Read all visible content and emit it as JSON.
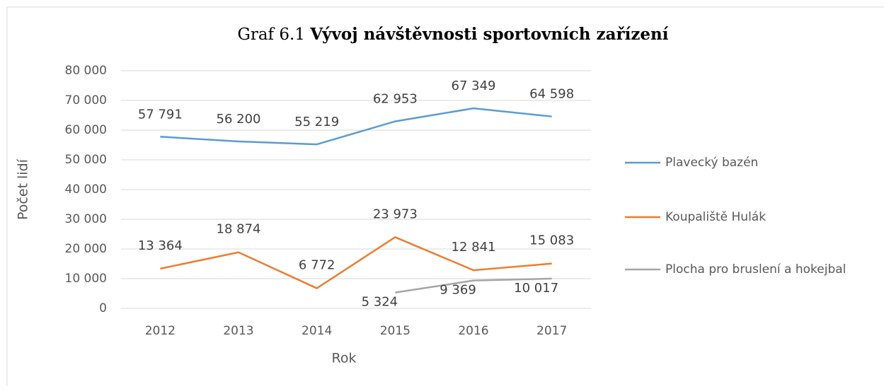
{
  "chart_data": {
    "type": "line",
    "title_label": "Graf 6.1",
    "title": "Vývoj návštěvnosti sportovních zařízení",
    "x_label": "Rok",
    "y_label": "Počet lidí",
    "categories": [
      "2012",
      "2013",
      "2014",
      "2015",
      "2016",
      "2017"
    ],
    "series": [
      {
        "name": "Plavecký bazén",
        "color": "#5b9bd5",
        "values": [
          57791,
          56200,
          55219,
          62953,
          67349,
          64598
        ],
        "value_labels": [
          "57 791",
          "56 200",
          "55 219",
          "62 953",
          "67 349",
          "64 598"
        ]
      },
      {
        "name": "Koupaliště Hulák",
        "color": "#ed7d31",
        "values": [
          13364,
          18874,
          6772,
          23973,
          12841,
          15083
        ],
        "value_labels": [
          "13 364",
          "18 874",
          "6 772",
          "23 973",
          "12 841",
          "15 083"
        ]
      },
      {
        "name": "Plocha pro bruslení a hokejbal",
        "color": "#a5a5a5",
        "values": [
          null,
          null,
          null,
          5324,
          9369,
          10017
        ],
        "value_labels": [
          null,
          null,
          null,
          "5 324",
          "9 369",
          "10 017"
        ]
      }
    ],
    "ylim": [
      0,
      80000
    ],
    "yticks": [
      0,
      {
        "value": 10000,
        "label": "10 000"
      },
      {
        "value": 20000,
        "label": "20 000"
      },
      {
        "value": 30000,
        "label": "30 000"
      },
      {
        "value": 40000,
        "label": "40 000"
      },
      {
        "value": 50000,
        "label": "50 000"
      },
      {
        "value": 60000,
        "label": "60 000"
      },
      {
        "value": 70000,
        "label": "70 000"
      },
      {
        "value": 80000,
        "label": "80 000"
      }
    ],
    "grid": true,
    "legend": "right"
  }
}
